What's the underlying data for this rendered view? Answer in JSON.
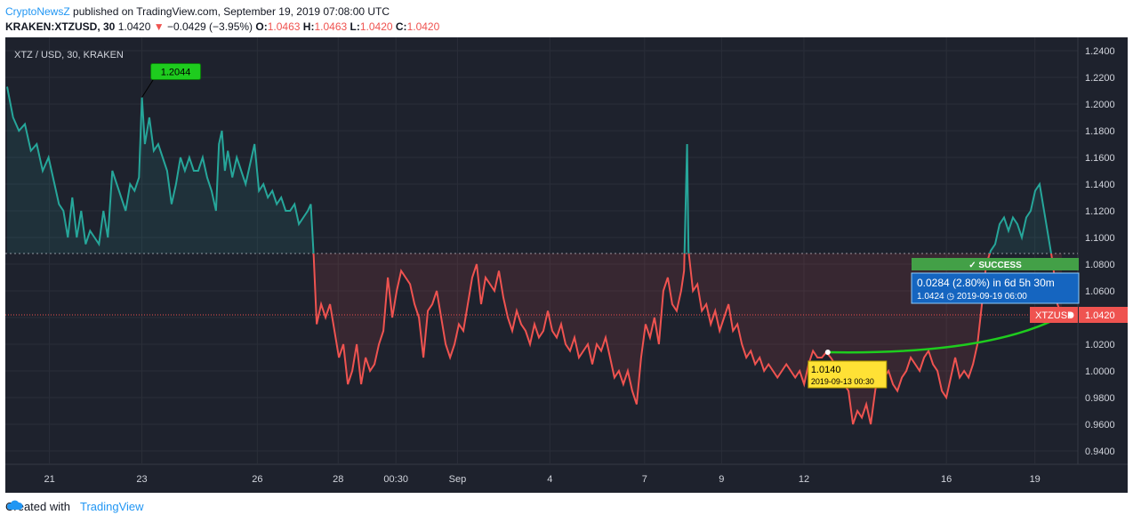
{
  "header": {
    "author": "CryptoNewsZ",
    "published": "published on TradingView.com, September 19, 2019 07:08:00 UTC",
    "symbol": "KRAKEN:XTZUSD, 30",
    "last": "1.0420",
    "change": "−0.0429 (−3.95%)",
    "o_label": "O:",
    "o": "1.0463",
    "h_label": "H:",
    "h": "1.0463",
    "l_label": "L:",
    "l": "1.0420",
    "c_label": "C:",
    "c": "1.0420"
  },
  "footer": {
    "created_with": "Created with",
    "brand": "TradingView"
  },
  "chart_data": {
    "type": "line",
    "title": "XTZ / USD, 30, KRAKEN",
    "ylim": [
      0.93,
      1.25
    ],
    "yticks": [
      "1.2400",
      "1.2200",
      "1.2000",
      "1.1800",
      "1.1600",
      "1.1400",
      "1.1200",
      "1.1000",
      "1.0800",
      "1.0600",
      "1.0400",
      "1.0200",
      "1.0000",
      "0.9800",
      "0.9600",
      "0.9400"
    ],
    "xticks": [
      "21",
      "23",
      "26",
      "28",
      "00:30",
      "Sep",
      "4",
      "7",
      "9",
      "12",
      "16",
      "19"
    ],
    "baseline": 1.088,
    "last_price": 1.042,
    "last_label": "XTZUSD",
    "last_value": "1.0420",
    "colors": {
      "above": "#26a69a",
      "below": "#ef5350",
      "bg": "#1e222d",
      "grid": "#2a2e39",
      "text": "#d1d4dc"
    },
    "series": [
      {
        "points": [
          [
            0,
            1.213
          ],
          [
            0.4,
            1.19
          ],
          [
            0.8,
            1.18
          ],
          [
            1.2,
            1.185
          ],
          [
            1.6,
            1.165
          ],
          [
            2.0,
            1.17
          ],
          [
            2.4,
            1.15
          ],
          [
            2.8,
            1.16
          ],
          [
            3.2,
            1.14
          ],
          [
            3.5,
            1.125
          ],
          [
            3.8,
            1.12
          ],
          [
            4.1,
            1.1
          ],
          [
            4.4,
            1.13
          ],
          [
            4.7,
            1.1
          ],
          [
            5.0,
            1.12
          ],
          [
            5.3,
            1.095
          ],
          [
            5.6,
            1.105
          ],
          [
            5.9,
            1.1
          ],
          [
            6.2,
            1.095
          ],
          [
            6.5,
            1.12
          ],
          [
            6.8,
            1.1
          ],
          [
            7.1,
            1.15
          ],
          [
            7.4,
            1.14
          ],
          [
            7.7,
            1.13
          ],
          [
            8.0,
            1.12
          ],
          [
            8.3,
            1.14
          ],
          [
            8.6,
            1.135
          ],
          [
            8.9,
            1.145
          ],
          [
            9.1,
            1.205
          ],
          [
            9.3,
            1.17
          ],
          [
            9.6,
            1.19
          ],
          [
            9.9,
            1.165
          ],
          [
            10.2,
            1.17
          ],
          [
            10.5,
            1.16
          ],
          [
            10.8,
            1.15
          ],
          [
            11.1,
            1.125
          ],
          [
            11.4,
            1.14
          ],
          [
            11.7,
            1.16
          ],
          [
            12.0,
            1.15
          ],
          [
            12.3,
            1.16
          ],
          [
            12.6,
            1.15
          ],
          [
            12.9,
            1.15
          ],
          [
            13.2,
            1.16
          ],
          [
            13.5,
            1.145
          ],
          [
            13.8,
            1.135
          ],
          [
            14.1,
            1.12
          ],
          [
            14.3,
            1.17
          ],
          [
            14.5,
            1.18
          ],
          [
            14.7,
            1.15
          ],
          [
            14.9,
            1.165
          ],
          [
            15.2,
            1.145
          ],
          [
            15.5,
            1.16
          ],
          [
            15.8,
            1.15
          ],
          [
            16.1,
            1.14
          ],
          [
            16.4,
            1.155
          ],
          [
            16.7,
            1.17
          ],
          [
            17.0,
            1.135
          ],
          [
            17.3,
            1.14
          ],
          [
            17.6,
            1.13
          ],
          [
            17.9,
            1.135
          ],
          [
            18.2,
            1.125
          ],
          [
            18.5,
            1.13
          ],
          [
            18.8,
            1.12
          ],
          [
            19.1,
            1.12
          ],
          [
            19.4,
            1.125
          ],
          [
            19.7,
            1.11
          ],
          [
            20.0,
            1.115
          ],
          [
            20.3,
            1.12
          ],
          [
            20.5,
            1.125
          ],
          [
            20.7,
            1.085
          ],
          [
            20.9,
            1.035
          ],
          [
            21.2,
            1.05
          ],
          [
            21.5,
            1.04
          ],
          [
            21.8,
            1.05
          ],
          [
            22.1,
            1.03
          ],
          [
            22.4,
            1.01
          ],
          [
            22.7,
            1.02
          ],
          [
            23.0,
            0.99
          ],
          [
            23.3,
            1.0
          ],
          [
            23.6,
            1.02
          ],
          [
            23.9,
            0.99
          ],
          [
            24.2,
            1.01
          ],
          [
            24.5,
            1.0
          ],
          [
            24.8,
            1.005
          ],
          [
            25.1,
            1.02
          ],
          [
            25.4,
            1.03
          ],
          [
            25.7,
            1.07
          ],
          [
            26.0,
            1.04
          ],
          [
            26.3,
            1.06
          ],
          [
            26.6,
            1.075
          ],
          [
            26.9,
            1.07
          ],
          [
            27.2,
            1.065
          ],
          [
            27.5,
            1.05
          ],
          [
            27.8,
            1.04
          ],
          [
            28.1,
            1.01
          ],
          [
            28.4,
            1.045
          ],
          [
            28.7,
            1.05
          ],
          [
            29.0,
            1.06
          ],
          [
            29.3,
            1.04
          ],
          [
            29.6,
            1.02
          ],
          [
            29.9,
            1.01
          ],
          [
            30.2,
            1.02
          ],
          [
            30.5,
            1.035
          ],
          [
            30.8,
            1.03
          ],
          [
            31.1,
            1.05
          ],
          [
            31.4,
            1.07
          ],
          [
            31.7,
            1.08
          ],
          [
            32.0,
            1.05
          ],
          [
            32.3,
            1.07
          ],
          [
            32.6,
            1.065
          ],
          [
            32.9,
            1.06
          ],
          [
            33.2,
            1.075
          ],
          [
            33.5,
            1.055
          ],
          [
            33.8,
            1.04
          ],
          [
            34.1,
            1.03
          ],
          [
            34.4,
            1.045
          ],
          [
            34.7,
            1.035
          ],
          [
            35.0,
            1.03
          ],
          [
            35.3,
            1.02
          ],
          [
            35.6,
            1.035
          ],
          [
            35.9,
            1.025
          ],
          [
            36.2,
            1.03
          ],
          [
            36.5,
            1.045
          ],
          [
            36.8,
            1.03
          ],
          [
            37.1,
            1.025
          ],
          [
            37.4,
            1.035
          ],
          [
            37.7,
            1.02
          ],
          [
            38.0,
            1.015
          ],
          [
            38.3,
            1.025
          ],
          [
            38.6,
            1.01
          ],
          [
            38.9,
            1.015
          ],
          [
            39.2,
            1.02
          ],
          [
            39.5,
            1.005
          ],
          [
            39.8,
            1.02
          ],
          [
            40.1,
            1.015
          ],
          [
            40.4,
            1.025
          ],
          [
            40.7,
            1.01
          ],
          [
            41.0,
            0.995
          ],
          [
            41.3,
            1.0
          ],
          [
            41.6,
            0.99
          ],
          [
            41.9,
            1.0
          ],
          [
            42.2,
            0.985
          ],
          [
            42.5,
            0.975
          ],
          [
            42.8,
            1.01
          ],
          [
            43.1,
            1.035
          ],
          [
            43.4,
            1.025
          ],
          [
            43.7,
            1.04
          ],
          [
            44.0,
            1.02
          ],
          [
            44.3,
            1.06
          ],
          [
            44.6,
            1.07
          ],
          [
            44.9,
            1.05
          ],
          [
            45.2,
            1.045
          ],
          [
            45.5,
            1.06
          ],
          [
            45.7,
            1.075
          ],
          [
            45.9,
            1.17
          ],
          [
            46.0,
            1.09
          ],
          [
            46.3,
            1.06
          ],
          [
            46.6,
            1.065
          ],
          [
            46.9,
            1.045
          ],
          [
            47.2,
            1.05
          ],
          [
            47.5,
            1.035
          ],
          [
            47.8,
            1.045
          ],
          [
            48.1,
            1.03
          ],
          [
            48.4,
            1.04
          ],
          [
            48.7,
            1.05
          ],
          [
            49.0,
            1.03
          ],
          [
            49.3,
            1.035
          ],
          [
            49.6,
            1.02
          ],
          [
            49.9,
            1.01
          ],
          [
            50.2,
            1.015
          ],
          [
            50.5,
            1.005
          ],
          [
            50.8,
            1.01
          ],
          [
            51.1,
            1.0
          ],
          [
            51.4,
            1.005
          ],
          [
            51.7,
            1.0
          ],
          [
            52.0,
            0.995
          ],
          [
            52.3,
            1.0
          ],
          [
            52.6,
            1.005
          ],
          [
            52.9,
            1.0
          ],
          [
            53.2,
            0.995
          ],
          [
            53.5,
            1.0
          ],
          [
            53.8,
            0.99
          ],
          [
            54.1,
            1.005
          ],
          [
            54.4,
            1.015
          ],
          [
            54.7,
            1.01
          ],
          [
            55.0,
            1.01
          ],
          [
            55.3,
            1.014
          ],
          [
            55.6,
            1.01
          ],
          [
            55.9,
            1.005
          ],
          [
            56.2,
            1.0
          ],
          [
            56.5,
            0.99
          ],
          [
            56.8,
            0.985
          ],
          [
            57.1,
            0.96
          ],
          [
            57.4,
            0.97
          ],
          [
            57.7,
            0.965
          ],
          [
            58.0,
            0.975
          ],
          [
            58.3,
            0.96
          ],
          [
            58.6,
            0.985
          ],
          [
            58.9,
            1.005
          ],
          [
            59.2,
            0.995
          ],
          [
            59.5,
            1.0
          ],
          [
            59.8,
            0.99
          ],
          [
            60.1,
            0.985
          ],
          [
            60.4,
            0.995
          ],
          [
            60.7,
            1.0
          ],
          [
            61.0,
            1.01
          ],
          [
            61.3,
            1.005
          ],
          [
            61.6,
            1.0
          ],
          [
            61.9,
            1.01
          ],
          [
            62.2,
            1.015
          ],
          [
            62.5,
            1.005
          ],
          [
            62.8,
            1.0
          ],
          [
            63.1,
            0.985
          ],
          [
            63.4,
            0.98
          ],
          [
            63.7,
            0.995
          ],
          [
            64.0,
            1.01
          ],
          [
            64.3,
            0.995
          ],
          [
            64.6,
            1.0
          ],
          [
            64.9,
            0.995
          ],
          [
            65.2,
            1.005
          ],
          [
            65.5,
            1.02
          ],
          [
            65.8,
            1.05
          ],
          [
            66.1,
            1.08
          ],
          [
            66.4,
            1.09
          ],
          [
            66.7,
            1.095
          ],
          [
            67.0,
            1.11
          ],
          [
            67.3,
            1.115
          ],
          [
            67.6,
            1.105
          ],
          [
            67.9,
            1.115
          ],
          [
            68.2,
            1.11
          ],
          [
            68.5,
            1.1
          ],
          [
            68.8,
            1.115
          ],
          [
            69.1,
            1.12
          ],
          [
            69.4,
            1.135
          ],
          [
            69.7,
            1.14
          ],
          [
            70.0,
            1.12
          ],
          [
            70.3,
            1.1
          ],
          [
            70.6,
            1.08
          ],
          [
            70.9,
            1.05
          ],
          [
            71.2,
            1.042
          ]
        ]
      }
    ],
    "annotations": {
      "high_label": "1.2044",
      "low_label": "1.0140",
      "low_date": "2019-09-13 00:30",
      "success": "✓ SUCCESS",
      "result_line1": "0.0284 (2.80%) in 6d 5h 30m",
      "result_line2": "1.0424 ◷ 2019-09-19  06:00"
    }
  }
}
